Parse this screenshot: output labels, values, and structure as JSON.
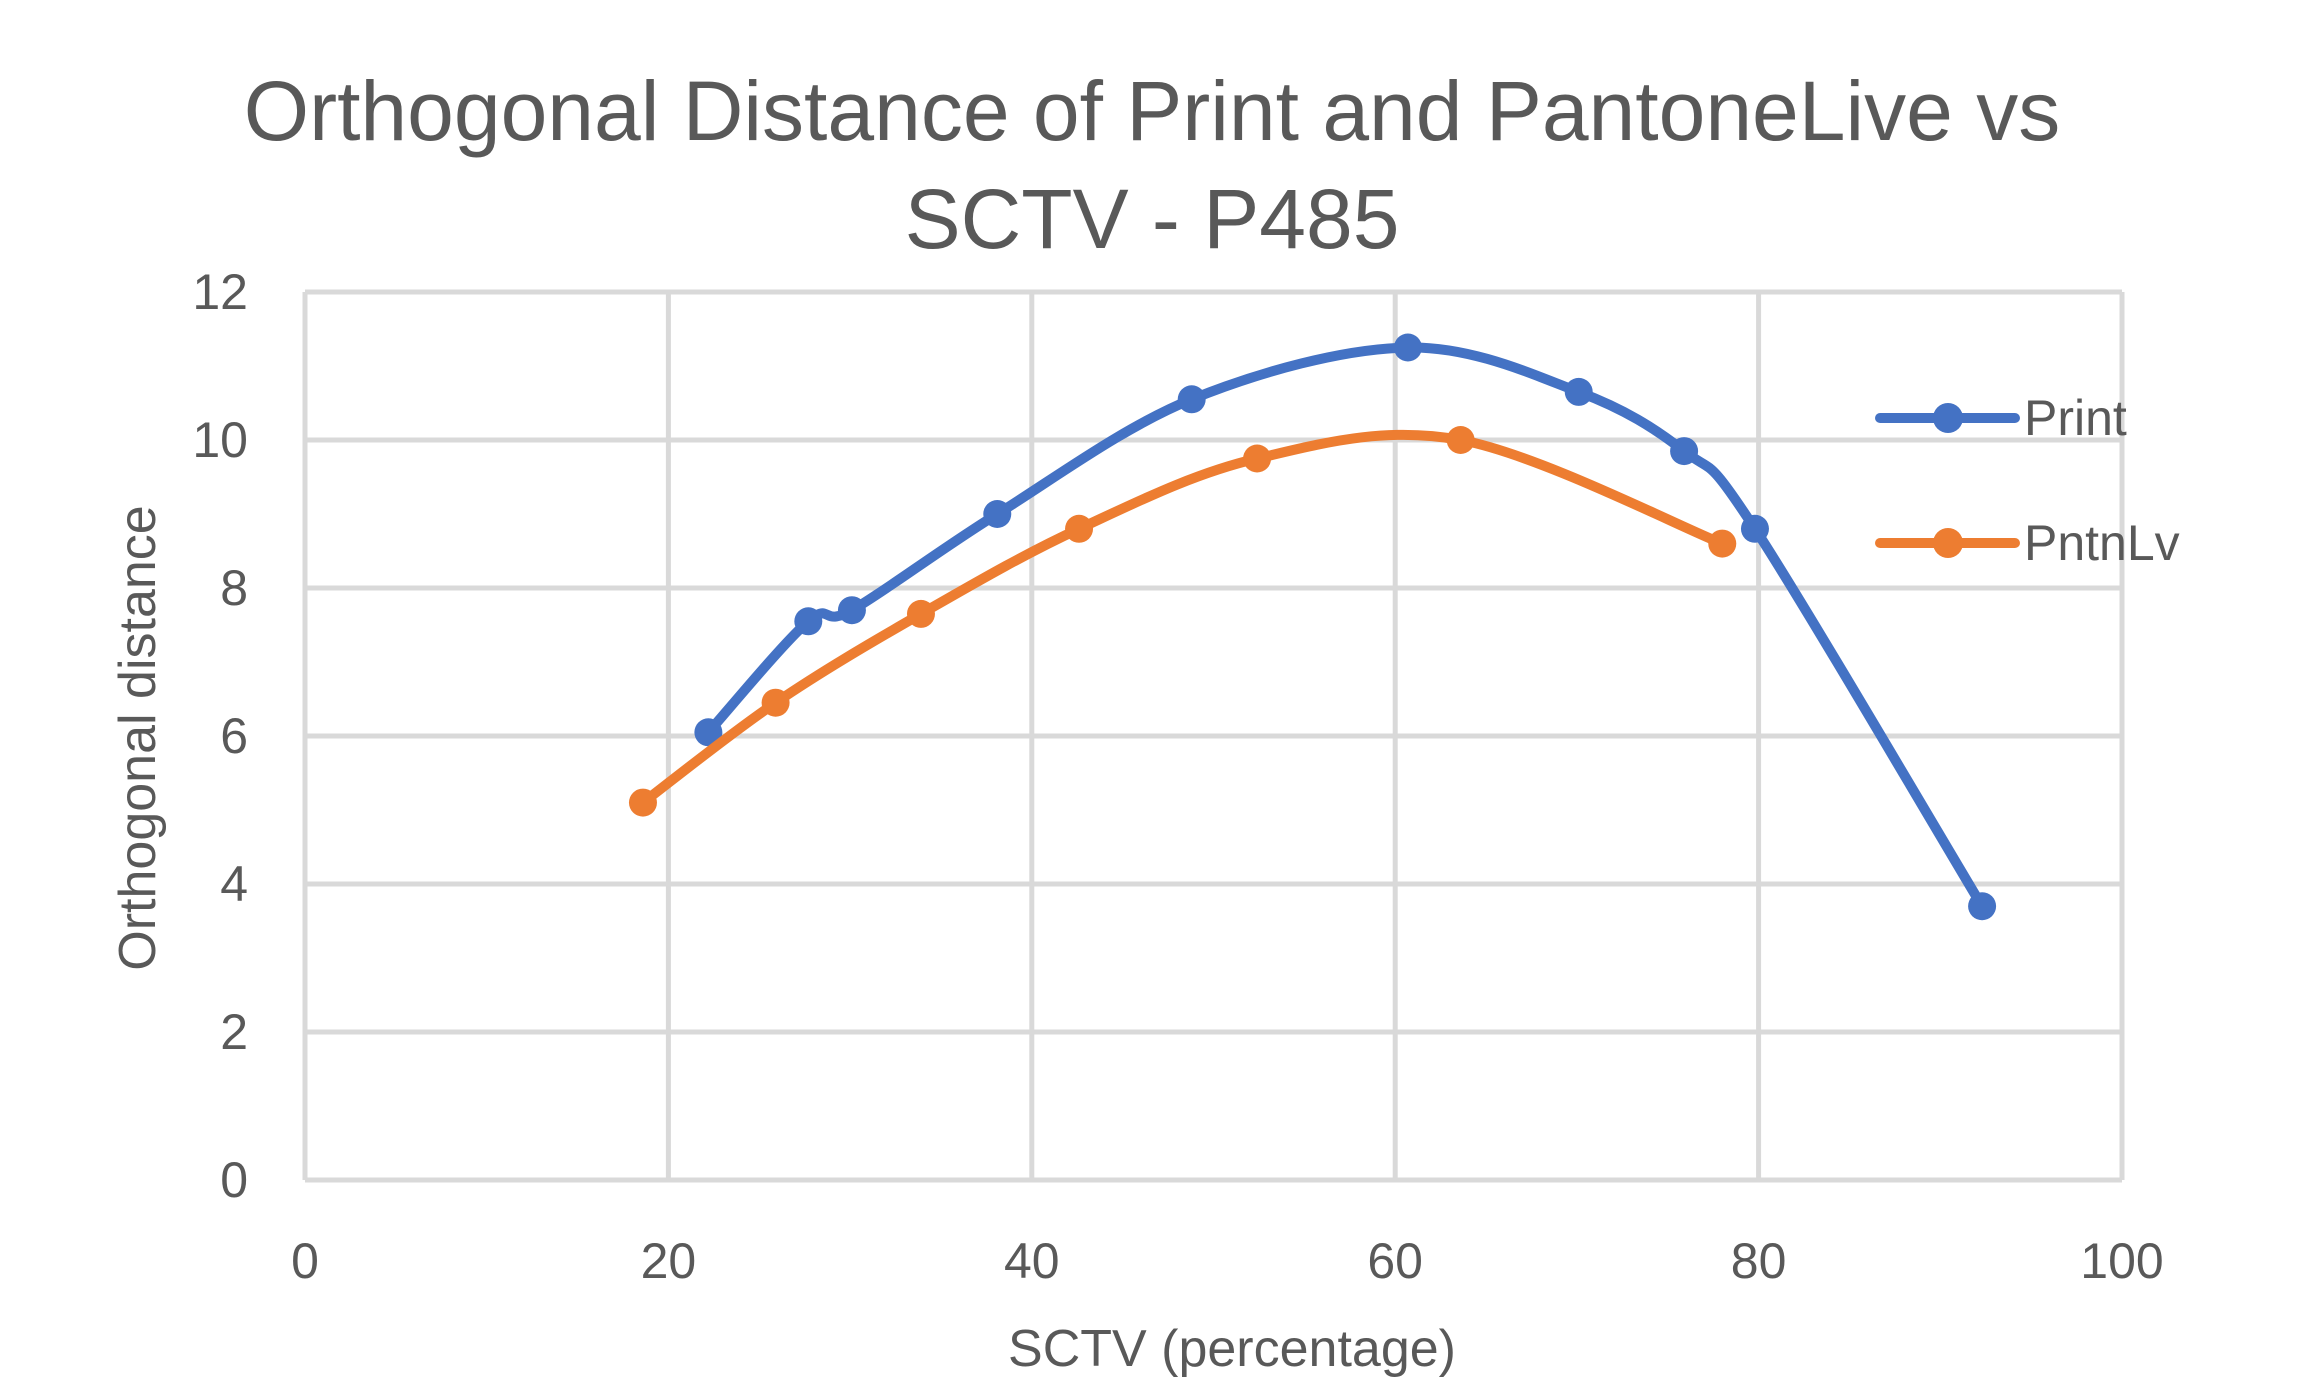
{
  "chart_data": {
    "type": "scatter",
    "title_lines": [
      "Orthogonal Distance of Print and PantoneLive vs",
      "SCTV - P485"
    ],
    "xlabel": "SCTV (percentage)",
    "ylabel": "Orthogonal distance",
    "xlim": [
      0,
      100
    ],
    "ylim": [
      0,
      12
    ],
    "x_ticks": [
      "0",
      "20",
      "40",
      "60",
      "80",
      "100"
    ],
    "y_ticks": [
      "0",
      "2",
      "4",
      "6",
      "8",
      "10",
      "12"
    ],
    "grid": true,
    "legend_position": "right",
    "series": [
      {
        "name": "Print",
        "color": "#4472c4",
        "style": "smoothed line with markers",
        "x": [
          22.2,
          27.7,
          30.1,
          38.1,
          48.8,
          60.7,
          70.1,
          75.9,
          79.8,
          92.3
        ],
        "y": [
          6.05,
          7.55,
          7.7,
          9.0,
          10.55,
          11.25,
          10.65,
          9.85,
          8.8,
          3.7
        ]
      },
      {
        "name": "PntnLv",
        "color": "#ed7d31",
        "style": "smoothed line with markers",
        "x": [
          18.6,
          25.9,
          33.9,
          42.6,
          52.4,
          63.6,
          78.0
        ],
        "y": [
          5.1,
          6.45,
          7.65,
          8.8,
          9.75,
          10.0,
          8.6
        ]
      }
    ]
  }
}
